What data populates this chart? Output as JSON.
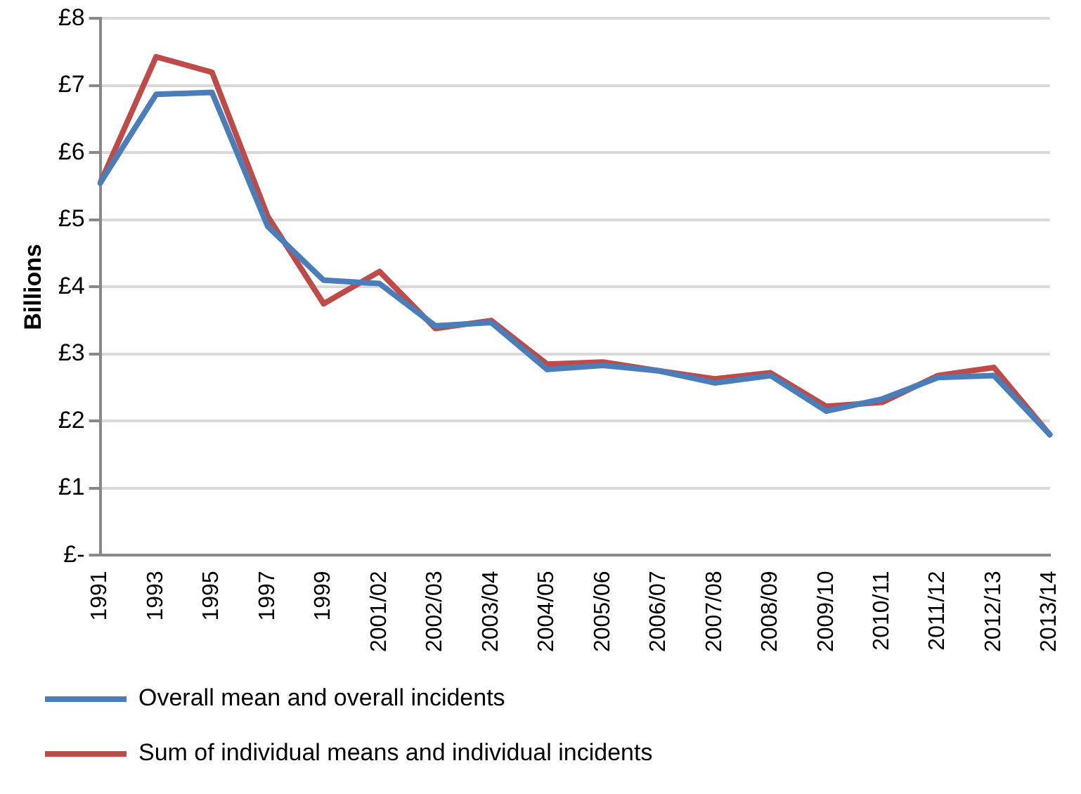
{
  "chart_data": {
    "type": "line",
    "ylabel": "Billions",
    "categories": [
      "1991",
      "1993",
      "1995",
      "1997",
      "1999",
      "2001/02",
      "2002/03",
      "2003/04",
      "2004/05",
      "2005/06",
      "2006/07",
      "2007/08",
      "2008/09",
      "2009/10",
      "2010/11",
      "2011/12",
      "2012/13",
      "2013/14"
    ],
    "series": [
      {
        "name": "Overall mean and overall incidents",
        "color": "#4a7ebb",
        "values": [
          5.55,
          6.87,
          6.9,
          4.9,
          4.1,
          4.05,
          3.42,
          3.47,
          2.77,
          2.83,
          2.75,
          2.57,
          2.68,
          2.15,
          2.33,
          2.65,
          2.68,
          1.8
        ]
      },
      {
        "name": "Sum of individual means and individual incidents",
        "color": "#be4b48",
        "values": [
          5.55,
          7.43,
          7.2,
          5.05,
          3.75,
          4.23,
          3.38,
          3.5,
          2.85,
          2.88,
          2.75,
          2.63,
          2.72,
          2.22,
          2.28,
          2.68,
          2.8,
          1.8
        ]
      }
    ],
    "ylim": [
      0,
      8
    ],
    "yticks": [
      {
        "value": 0,
        "label": "£-"
      },
      {
        "value": 1,
        "label": "£1"
      },
      {
        "value": 2,
        "label": "£2"
      },
      {
        "value": 3,
        "label": "£3"
      },
      {
        "value": 4,
        "label": "£4"
      },
      {
        "value": 5,
        "label": "£5"
      },
      {
        "value": 6,
        "label": "£6"
      },
      {
        "value": 7,
        "label": "£7"
      },
      {
        "value": 8,
        "label": "£8"
      }
    ],
    "grid": "y",
    "legend": "bottom",
    "marker": "none",
    "line_style": "solid"
  }
}
